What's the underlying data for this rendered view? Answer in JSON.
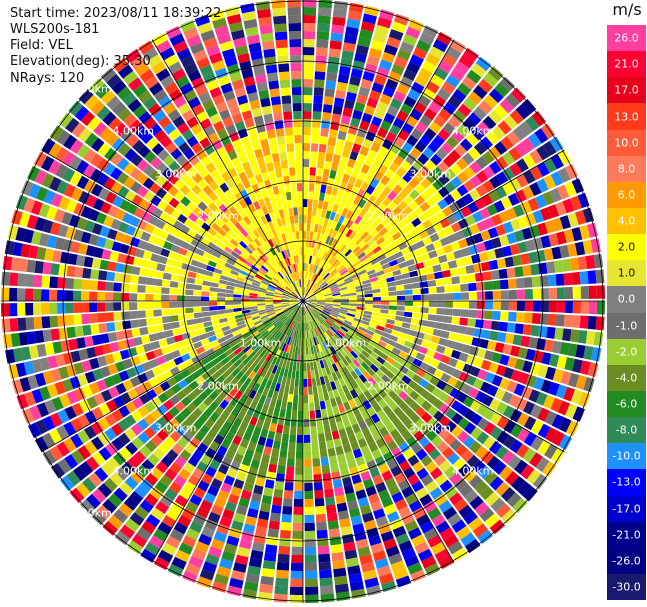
{
  "info": {
    "start_time": "Start time: 2023/08/11 18:39:22",
    "instrument": "WLS200s-181",
    "field": "Field: VEL",
    "elevation": "Elevation(deg): 35.30",
    "nrays": "NRays: 120"
  },
  "range_rings": [
    {
      "value": "1.00km"
    },
    {
      "value": "2.00km"
    },
    {
      "value": "3.00km"
    },
    {
      "value": "4.00km"
    },
    {
      "value": "5.00km"
    }
  ],
  "range_labels": [
    {
      "text": "1.00km",
      "ring": 1,
      "angle": 225
    },
    {
      "text": "1.00km",
      "ring": 1,
      "angle": 135
    },
    {
      "text": "2.00km",
      "ring": 2,
      "angle": 315
    },
    {
      "text": "2.00km",
      "ring": 2,
      "angle": 45
    },
    {
      "text": "2.00km",
      "ring": 2,
      "angle": 225
    },
    {
      "text": "2.00km",
      "ring": 2,
      "angle": 135
    },
    {
      "text": "3.00km",
      "ring": 3,
      "angle": 315
    },
    {
      "text": "3.00km",
      "ring": 3,
      "angle": 45
    },
    {
      "text": "3.00km",
      "ring": 3,
      "angle": 225
    },
    {
      "text": "3.00km",
      "ring": 3,
      "angle": 135
    },
    {
      "text": "4.00km",
      "ring": 4,
      "angle": 315
    },
    {
      "text": "4.00km",
      "ring": 4,
      "angle": 45
    },
    {
      "text": "4.00km",
      "ring": 4,
      "angle": 225
    },
    {
      "text": "4.00km",
      "ring": 4,
      "angle": 135
    },
    {
      "text": "5.00km",
      "ring": 5,
      "angle": 315
    },
    {
      "text": "5.00km",
      "ring": 5,
      "angle": 225
    }
  ],
  "colorbar": {
    "unit": "m/s",
    "levels": [
      {
        "label": "26.0",
        "color": "#ff3ea0"
      },
      {
        "label": "21.0",
        "color": "#ff0033"
      },
      {
        "label": "17.0",
        "color": "#e8001a"
      },
      {
        "label": "13.0",
        "color": "#ff3a1a"
      },
      {
        "label": "10.0",
        "color": "#ff5a3a"
      },
      {
        "label": "8.0",
        "color": "#ff7a5a"
      },
      {
        "label": "6.0",
        "color": "#ff9a00"
      },
      {
        "label": "4.0",
        "color": "#ffc000"
      },
      {
        "label": "2.0",
        "color": "#ffff00"
      },
      {
        "label": "1.0",
        "color": "#e6e630"
      },
      {
        "label": "0.0",
        "color": "#808080"
      },
      {
        "label": "-1.0",
        "color": "#6e6e6e"
      },
      {
        "label": "-2.0",
        "color": "#9acd32"
      },
      {
        "label": "-4.0",
        "color": "#6b8e23"
      },
      {
        "label": "-6.0",
        "color": "#228b22"
      },
      {
        "label": "-8.0",
        "color": "#2e8b57"
      },
      {
        "label": "-10.0",
        "color": "#1e90ff"
      },
      {
        "label": "-13.0",
        "color": "#0000ff"
      },
      {
        "label": "-17.0",
        "color": "#0000cd"
      },
      {
        "label": "-21.0",
        "color": "#00008b"
      },
      {
        "label": "-26.0",
        "color": "#000080"
      },
      {
        "label": "-30.0",
        "color": "#191970"
      }
    ]
  }
}
